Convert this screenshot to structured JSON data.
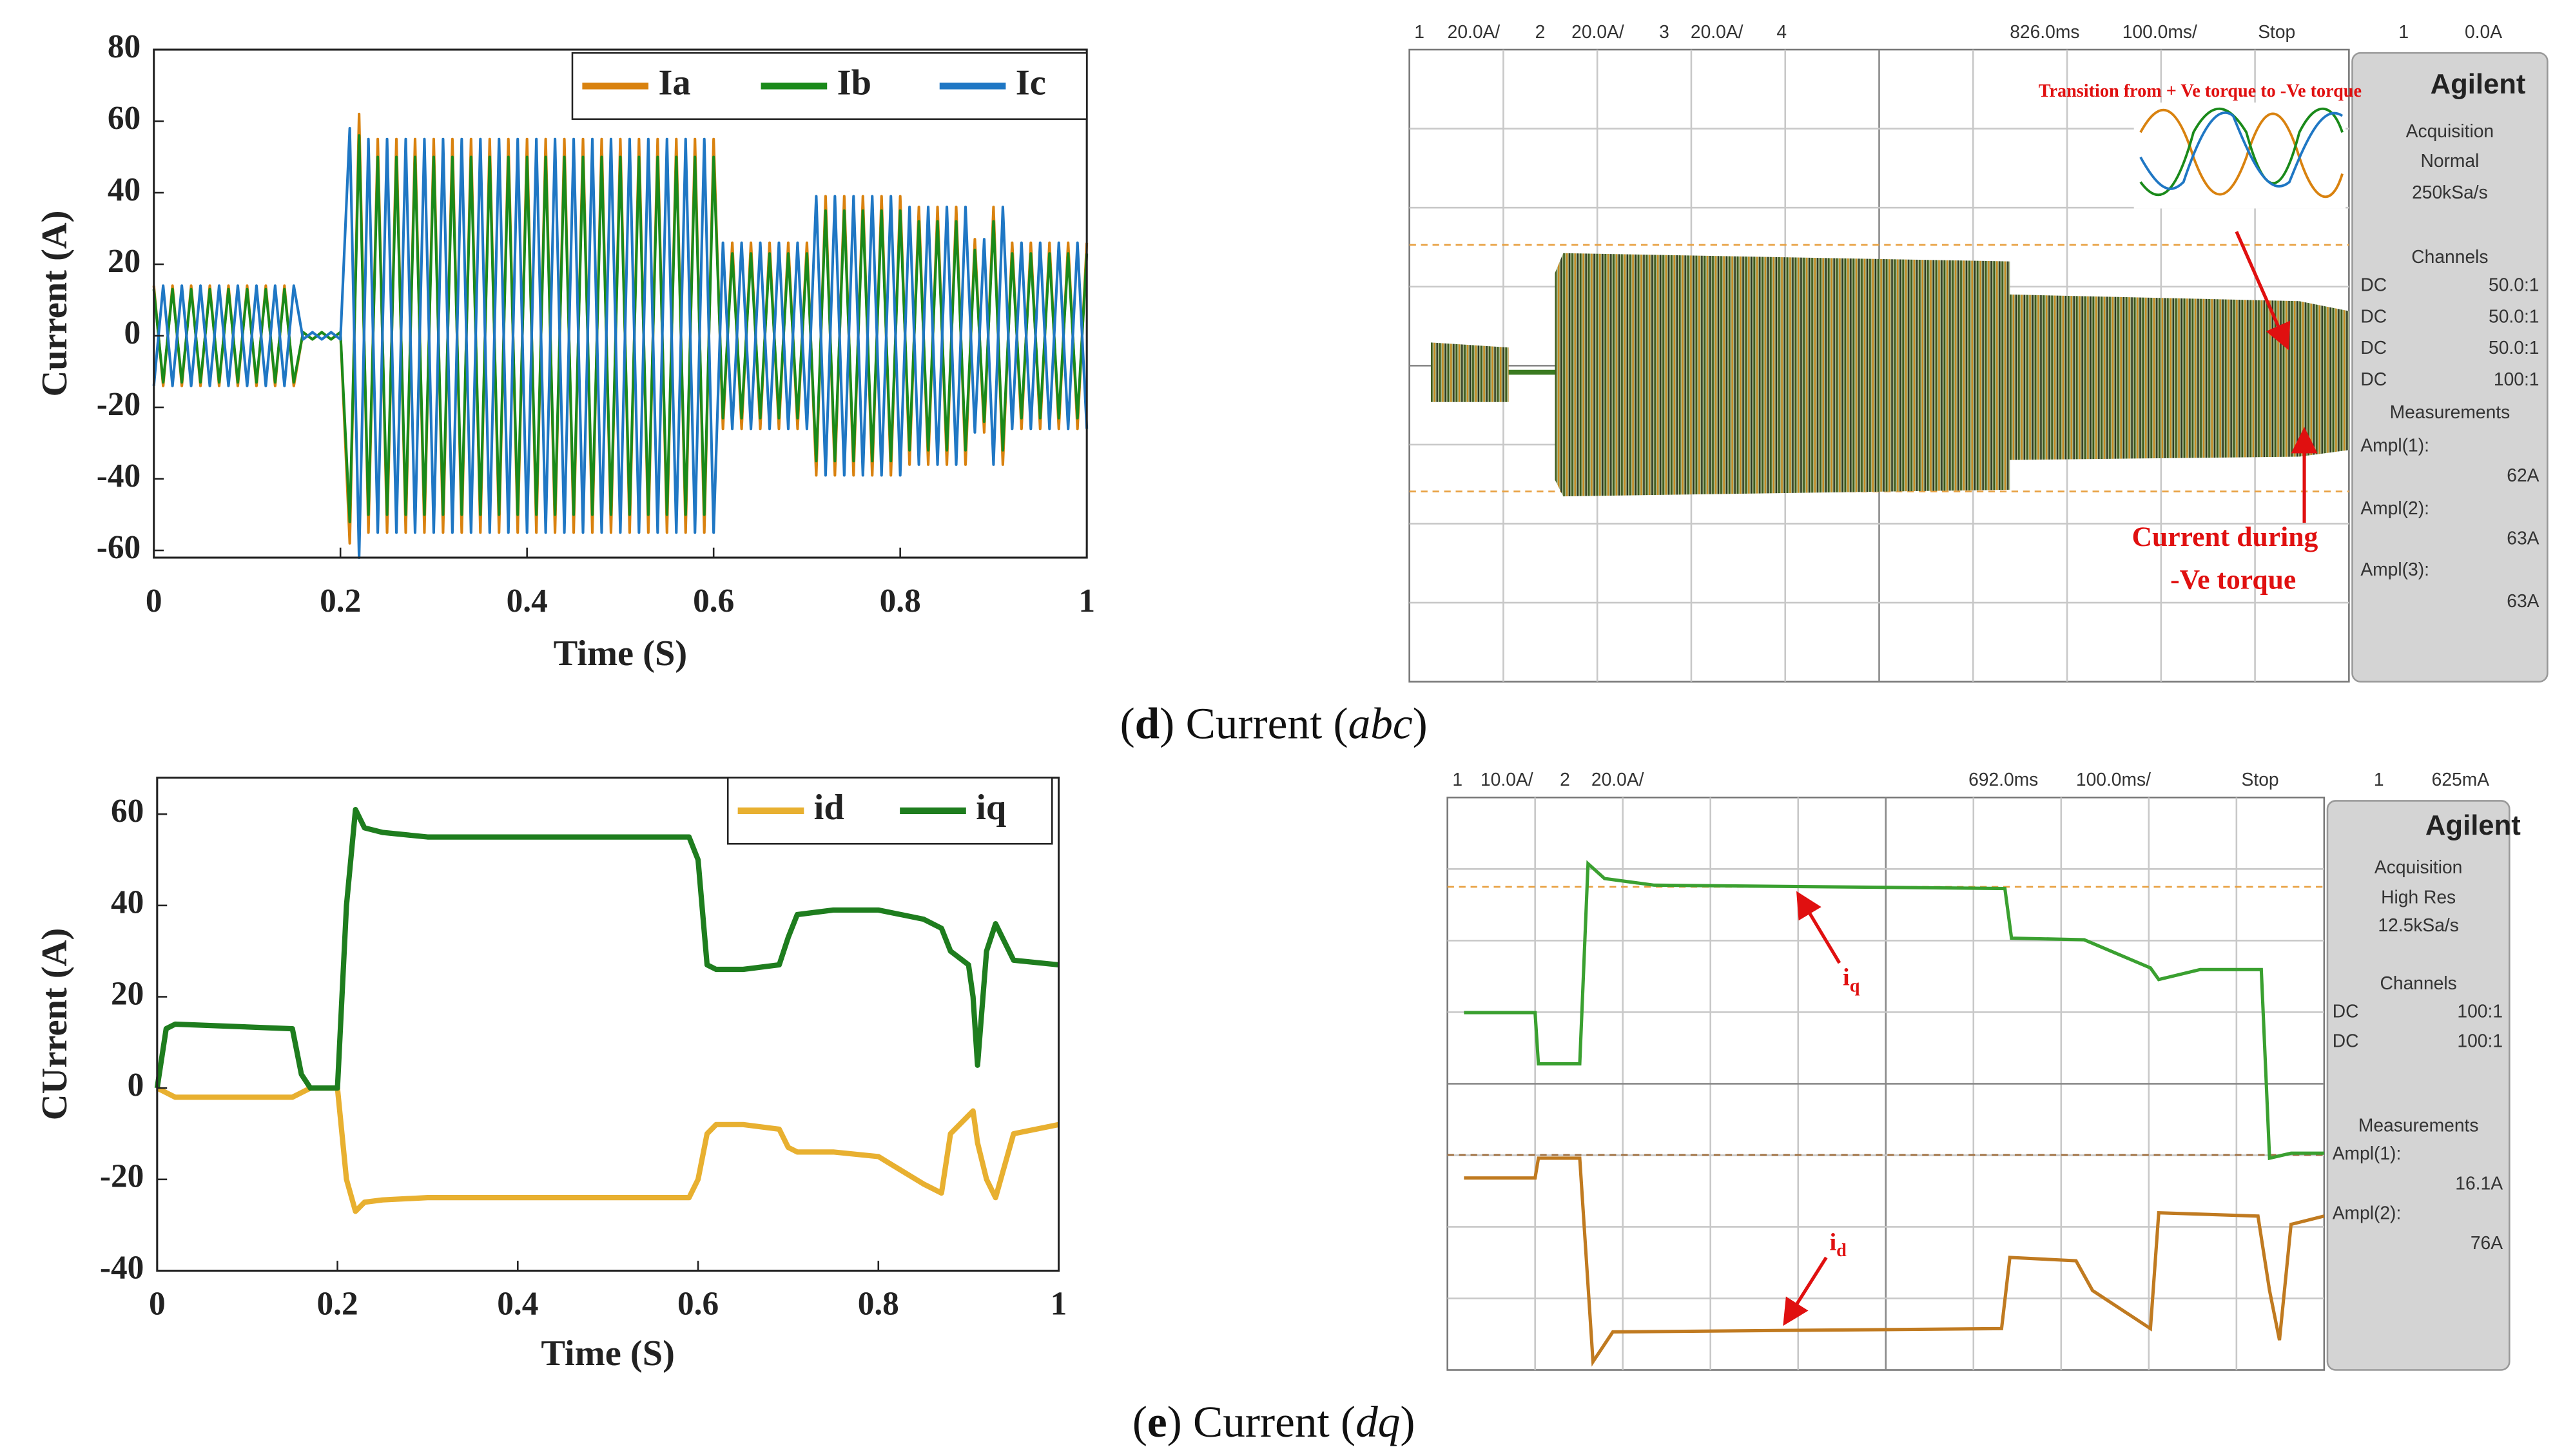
{
  "chart_data": [
    {
      "type": "line",
      "xlabel": "Time (S)",
      "ylabel": "Current (A)",
      "x": [
        0,
        0.01,
        0.02,
        0.03,
        0.04,
        0.05,
        0.06,
        0.07,
        0.08,
        0.09,
        0.1,
        0.11,
        0.12,
        0.13,
        0.14,
        0.15,
        0.16,
        0.17,
        0.18,
        0.19,
        0.2,
        0.21,
        0.22,
        0.23,
        0.24,
        0.25,
        0.26,
        0.27,
        0.28,
        0.29,
        0.3,
        0.31,
        0.32,
        0.33,
        0.34,
        0.35,
        0.36,
        0.37,
        0.38,
        0.39,
        0.4,
        0.41,
        0.42,
        0.43,
        0.44,
        0.45,
        0.46,
        0.47,
        0.48,
        0.49,
        0.5,
        0.51,
        0.52,
        0.53,
        0.54,
        0.55,
        0.56,
        0.57,
        0.58,
        0.59,
        0.6,
        0.61,
        0.62,
        0.63,
        0.64,
        0.65,
        0.66,
        0.67,
        0.68,
        0.69,
        0.7,
        0.71,
        0.72,
        0.73,
        0.74,
        0.75,
        0.76,
        0.77,
        0.78,
        0.79,
        0.8,
        0.81,
        0.82,
        0.83,
        0.84,
        0.85,
        0.86,
        0.87,
        0.88,
        0.89,
        0.9,
        0.91,
        0.92,
        0.93,
        0.94,
        0.95,
        0.96,
        0.97,
        0.98,
        0.99,
        1
      ],
      "xlim": [
        0,
        1
      ],
      "xticks": [
        0,
        0.2,
        0.4,
        0.6,
        0.8,
        1
      ],
      "ylim": [
        -62,
        80
      ],
      "yticks": [
        -60,
        -40,
        -20,
        0,
        20,
        40,
        60,
        80
      ],
      "legend": "top-right",
      "series": [
        {
          "name": "Ia",
          "color": "#d9820f",
          "values": [
            14,
            -14,
            14,
            -14,
            14,
            -14,
            14,
            -14,
            14,
            -14,
            14,
            -14,
            14,
            -14,
            14,
            -14,
            1,
            -1,
            1,
            -1,
            1,
            -58,
            62,
            -55,
            55,
            -55,
            55,
            -55,
            55,
            -55,
            55,
            -55,
            55,
            -55,
            55,
            -55,
            55,
            -55,
            55,
            -55,
            55,
            -55,
            55,
            -55,
            55,
            -55,
            55,
            -55,
            55,
            -55,
            55,
            -55,
            55,
            -55,
            55,
            -55,
            55,
            -55,
            55,
            -55,
            55,
            -26,
            26,
            -26,
            26,
            -26,
            26,
            -26,
            26,
            -26,
            26,
            -39,
            39,
            -39,
            39,
            -39,
            39,
            -39,
            39,
            -39,
            39,
            -36,
            36,
            -36,
            36,
            -36,
            36,
            -36,
            27,
            -27,
            36,
            -36,
            26,
            -26,
            26,
            -26,
            26,
            -26,
            26,
            -26,
            26
          ]
        },
        {
          "name": "Ib",
          "color": "#1a8a1a",
          "values": [
            13,
            -13,
            13,
            -13,
            13,
            -13,
            13,
            -13,
            13,
            -13,
            13,
            -13,
            13,
            -13,
            13,
            -13,
            1,
            -1,
            1,
            -1,
            1,
            -52,
            56,
            -50,
            50,
            -50,
            50,
            -50,
            50,
            -50,
            50,
            -50,
            50,
            -50,
            50,
            -50,
            50,
            -50,
            50,
            -50,
            50,
            -50,
            50,
            -50,
            50,
            -50,
            50,
            -50,
            50,
            -50,
            50,
            -50,
            50,
            -50,
            50,
            -50,
            50,
            -50,
            50,
            -50,
            50,
            -23,
            23,
            -23,
            23,
            -23,
            23,
            -23,
            23,
            -23,
            23,
            -35,
            35,
            -35,
            35,
            -35,
            35,
            -35,
            35,
            -35,
            35,
            -32,
            32,
            -32,
            32,
            -32,
            32,
            -32,
            24,
            -24,
            32,
            -32,
            23,
            -23,
            23,
            -23,
            23,
            -23,
            23,
            -23,
            23
          ]
        },
        {
          "name": "Ic",
          "color": "#1f77c4",
          "values": [
            -14,
            14,
            -14,
            14,
            -14,
            14,
            -14,
            14,
            -14,
            14,
            -14,
            14,
            -14,
            14,
            -14,
            14,
            -1,
            1,
            -1,
            1,
            -1,
            58,
            -62,
            55,
            -55,
            55,
            -55,
            55,
            -55,
            55,
            -55,
            55,
            -55,
            55,
            -55,
            55,
            -55,
            55,
            -55,
            55,
            -55,
            55,
            -55,
            55,
            -55,
            55,
            -55,
            55,
            -55,
            55,
            -55,
            55,
            -55,
            55,
            -55,
            55,
            -55,
            55,
            -55,
            55,
            -55,
            26,
            -26,
            26,
            -26,
            26,
            -26,
            26,
            -26,
            26,
            -26,
            39,
            -39,
            39,
            -39,
            39,
            -39,
            39,
            -39,
            39,
            -39,
            36,
            -36,
            36,
            -36,
            36,
            -36,
            36,
            -27,
            27,
            -36,
            36,
            -26,
            26,
            -26,
            26,
            -26,
            26,
            -26,
            26,
            -26
          ]
        }
      ]
    },
    {
      "type": "line",
      "xlabel": "Time (S)",
      "ylabel": "CUrrent (A)",
      "x": [
        0,
        0.01,
        0.02,
        0.15,
        0.16,
        0.17,
        0.2,
        0.21,
        0.22,
        0.23,
        0.25,
        0.3,
        0.4,
        0.5,
        0.59,
        0.6,
        0.61,
        0.62,
        0.65,
        0.69,
        0.7,
        0.71,
        0.75,
        0.8,
        0.85,
        0.87,
        0.88,
        0.9,
        0.905,
        0.91,
        0.92,
        0.93,
        0.95,
        1
      ],
      "xlim": [
        0,
        1
      ],
      "xticks": [
        0,
        0.2,
        0.4,
        0.6,
        0.8,
        1
      ],
      "ylim": [
        -40,
        68
      ],
      "yticks": [
        -40,
        -20,
        0,
        20,
        40,
        60
      ],
      "legend": "top-right",
      "series": [
        {
          "name": "id",
          "color": "#e8b030",
          "values": [
            0,
            -1,
            -2,
            -2,
            -1,
            0,
            0,
            -20,
            -27,
            -25,
            -24.5,
            -24,
            -24,
            -24,
            -24,
            -20,
            -10,
            -8,
            -8,
            -9,
            -13,
            -14,
            -14,
            -15,
            -21,
            -23,
            -10,
            -6,
            -5,
            -12,
            -20,
            -24,
            -10,
            -8
          ]
        },
        {
          "name": "iq",
          "color": "#1e7d1e",
          "values": [
            0,
            13,
            14,
            13,
            3,
            0,
            0,
            40,
            61,
            57,
            56,
            55,
            55,
            55,
            55,
            50,
            27,
            26,
            26,
            27,
            33,
            38,
            39,
            39,
            37,
            35,
            30,
            27,
            20,
            5,
            30,
            36,
            28,
            27
          ]
        }
      ]
    }
  ],
  "figure_captions": [
    {
      "parts": [
        "(",
        "d",
        ") Current (",
        "abc",
        ")"
      ]
    },
    {
      "parts": [
        "(",
        "e",
        ") Current (",
        "dq",
        ")"
      ]
    }
  ],
  "scopes": [
    {
      "header": [
        "1",
        "20.0A/",
        "2",
        "20.0A/",
        "3",
        "20.0A/",
        "4",
        "826.0ms",
        "100.0ms/",
        "Stop",
        "1",
        "0.0A"
      ],
      "brand": "Agilent",
      "acquisition": [
        "Acquisition",
        "Normal",
        "250kSa/s"
      ],
      "channels_title": "Channels",
      "channels": [
        [
          "DC",
          "50.0:1"
        ],
        [
          "DC",
          "50.0:1"
        ],
        [
          "DC",
          "50.0:1"
        ],
        [
          "DC",
          "100:1"
        ]
      ],
      "measurements_title": "Measurements",
      "measurements": [
        [
          "Ampl(1):",
          "62A"
        ],
        [
          "Ampl(2):",
          "63A"
        ],
        [
          "Ampl(3):",
          "63A"
        ]
      ],
      "annotations": [
        "Transition from + Ve torque to -Ve torque",
        "Current during",
        "-Ve torque"
      ]
    },
    {
      "header": [
        "1",
        "10.0A/",
        "2",
        "20.0A/",
        "692.0ms",
        "100.0ms/",
        "Stop",
        "1",
        "625mA"
      ],
      "brand": "Agilent",
      "acquisition": [
        "Acquisition",
        "High Res",
        "12.5kSa/s"
      ],
      "channels_title": "Channels",
      "channels": [
        [
          "DC",
          "100:1"
        ],
        [
          "DC",
          "100:1"
        ]
      ],
      "measurements_title": "Measurements",
      "measurements": [
        [
          "Ampl(1):",
          "16.1A"
        ],
        [
          "Ampl(2):",
          "76A"
        ]
      ],
      "annotations": [
        {
          "main": "i",
          "sub": "q"
        },
        {
          "main": "i",
          "sub": "d"
        }
      ]
    }
  ]
}
